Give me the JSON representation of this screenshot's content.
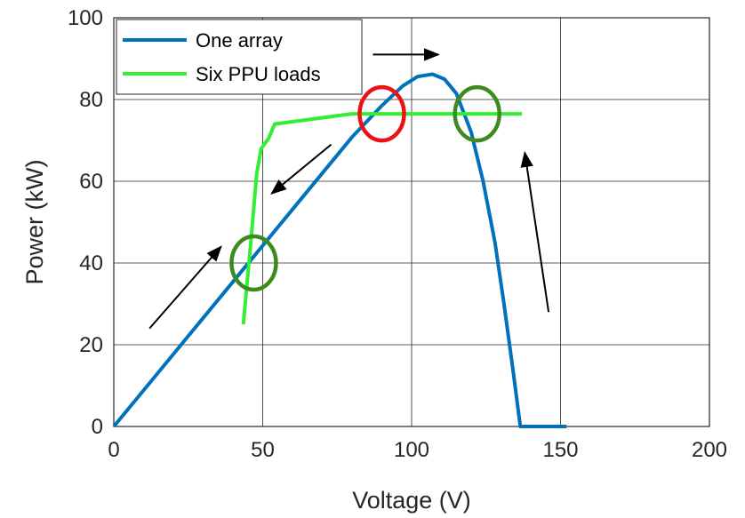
{
  "chart_data": {
    "type": "line",
    "xlabel": "Voltage (V)",
    "ylabel": "Power (kW)",
    "xlim": [
      0,
      200
    ],
    "ylim": [
      0,
      100
    ],
    "xticks": [
      0,
      50,
      100,
      150,
      200
    ],
    "yticks": [
      0,
      20,
      40,
      60,
      80,
      100
    ],
    "grid": true,
    "legend_position": "top-left",
    "series": [
      {
        "name": "One array",
        "color": "#0072BD",
        "x": [
          0,
          20,
          40,
          60,
          80,
          90,
          97,
          102,
          107,
          111,
          115,
          120,
          124,
          128,
          131,
          134,
          136.5,
          152
        ],
        "y": [
          0,
          17.7,
          35.4,
          53.1,
          70.8,
          78.5,
          83.3,
          85.6,
          86.2,
          85,
          81.5,
          72,
          60,
          45,
          30,
          14,
          0,
          0
        ]
      },
      {
        "name": "Six PPU loads",
        "color": "#33EE33",
        "x": [
          43.5,
          46,
          48,
          49.5,
          52,
          54,
          80,
          137
        ],
        "y": [
          25,
          45,
          62,
          68,
          70.5,
          74,
          76.5,
          76.5
        ]
      }
    ],
    "annotations": {
      "circles": [
        {
          "x": 47,
          "y": 40,
          "color": "#3D8B1F"
        },
        {
          "x": 90,
          "y": 76.5,
          "color": "#EE1111"
        },
        {
          "x": 122,
          "y": 76.5,
          "color": "#3D8B1F"
        }
      ],
      "arrows": [
        {
          "from": [
            12,
            24
          ],
          "to": [
            36,
            44
          ]
        },
        {
          "from": [
            73,
            69
          ],
          "to": [
            53,
            57
          ]
        },
        {
          "from": [
            87,
            91
          ],
          "to": [
            109,
            91
          ]
        },
        {
          "from": [
            146,
            28
          ],
          "to": [
            138,
            67
          ]
        }
      ]
    }
  }
}
